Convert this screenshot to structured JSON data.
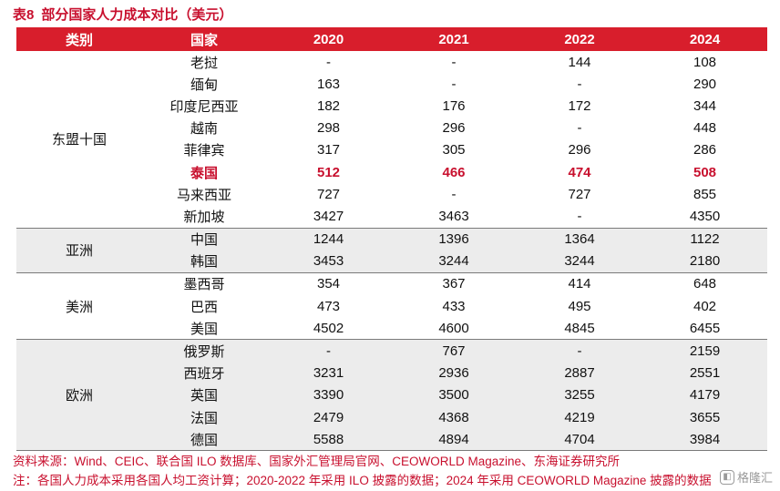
{
  "title": {
    "label": "表8",
    "text": "部分国家人力成本对比（美元）"
  },
  "table": {
    "headers": [
      "类别",
      "国家",
      "2020",
      "2021",
      "2022",
      "2024"
    ],
    "groups": [
      {
        "name": "东盟十国",
        "rows": [
          {
            "country": "老挝",
            "values": [
              "-",
              "-",
              "144",
              "108"
            ]
          },
          {
            "country": "缅甸",
            "values": [
              "163",
              "-",
              "-",
              "290"
            ]
          },
          {
            "country": "印度尼西亚",
            "values": [
              "182",
              "176",
              "172",
              "344"
            ]
          },
          {
            "country": "越南",
            "values": [
              "298",
              "296",
              "-",
              "448"
            ]
          },
          {
            "country": "菲律宾",
            "values": [
              "317",
              "305",
              "296",
              "286"
            ]
          },
          {
            "country": "泰国",
            "values": [
              "512",
              "466",
              "474",
              "508"
            ],
            "highlight": true
          },
          {
            "country": "马来西亚",
            "values": [
              "727",
              "-",
              "727",
              "855"
            ]
          },
          {
            "country": "新加坡",
            "values": [
              "3427",
              "3463",
              "-",
              "4350"
            ]
          }
        ]
      },
      {
        "name": "亚洲",
        "rows": [
          {
            "country": "中国",
            "values": [
              "1244",
              "1396",
              "1364",
              "1122"
            ]
          },
          {
            "country": "韩国",
            "values": [
              "3453",
              "3244",
              "3244",
              "2180"
            ]
          }
        ]
      },
      {
        "name": "美洲",
        "rows": [
          {
            "country": "墨西哥",
            "values": [
              "354",
              "367",
              "414",
              "648"
            ]
          },
          {
            "country": "巴西",
            "values": [
              "473",
              "433",
              "495",
              "402"
            ]
          },
          {
            "country": "美国",
            "values": [
              "4502",
              "4600",
              "4845",
              "6455"
            ]
          }
        ]
      },
      {
        "name": "欧洲",
        "rows": [
          {
            "country": "俄罗斯",
            "values": [
              "-",
              "767",
              "-",
              "2159"
            ]
          },
          {
            "country": "西班牙",
            "values": [
              "3231",
              "2936",
              "2887",
              "2551"
            ]
          },
          {
            "country": "英国",
            "values": [
              "3390",
              "3500",
              "3255",
              "4179"
            ]
          },
          {
            "country": "法国",
            "values": [
              "2479",
              "4368",
              "4219",
              "3655"
            ]
          },
          {
            "country": "德国",
            "values": [
              "5588",
              "4894",
              "4704",
              "3984"
            ]
          }
        ]
      }
    ]
  },
  "footer": {
    "source": "资料来源：Wind、CEIC、联合国 ILO 数据库、国家外汇管理局官网、CEOWORLD Magazine、东海证券研究所",
    "note": "注：各国人力成本采用各国人均工资计算；2020-2022 年采用 ILO 披露的数据；2024 年采用 CEOWORLD Magazine 披露的数据"
  },
  "watermark": {
    "text": "格隆汇",
    "icon": "glh-logo-icon"
  },
  "colors": {
    "accent": "#d81e2c",
    "highlight": "#c8102e",
    "band": "#ececec"
  }
}
